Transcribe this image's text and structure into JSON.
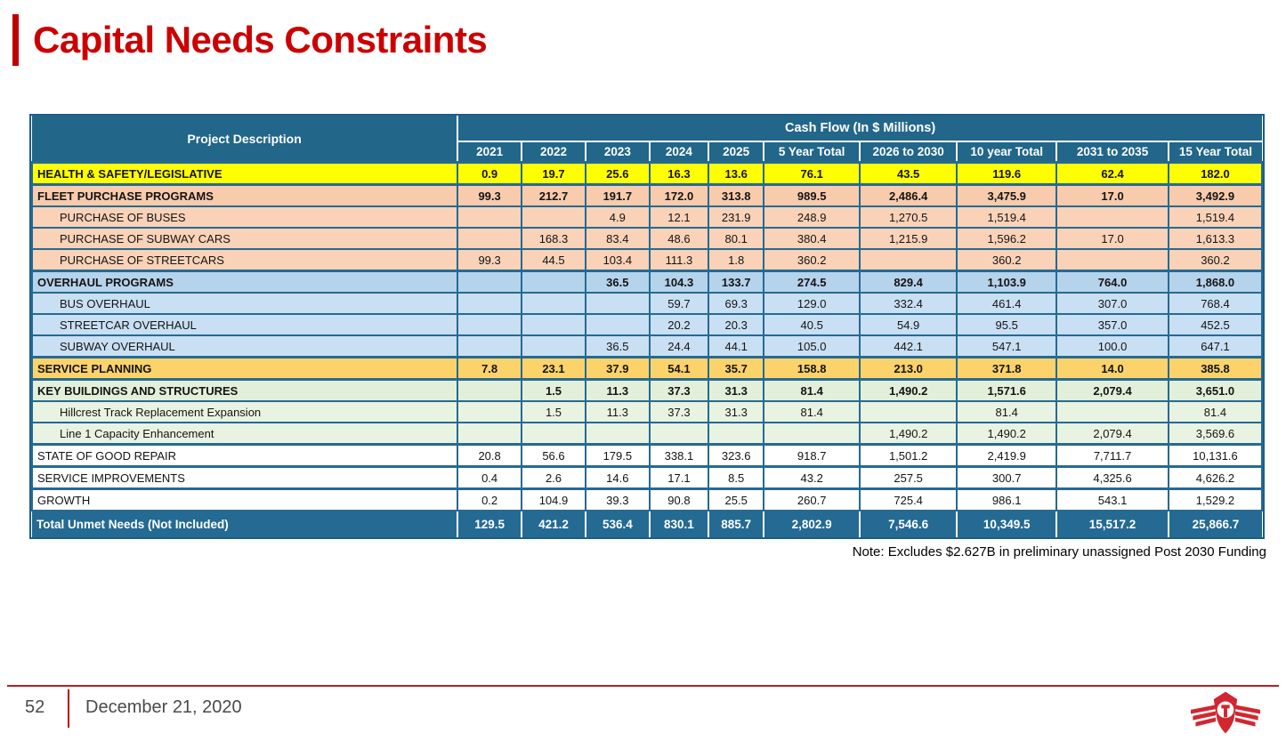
{
  "title": "Capital Needs Constraints",
  "table": {
    "header": {
      "project_col": "Project Description",
      "cash_flow_title": "Cash Flow (In $ Millions)",
      "columns": [
        "2021",
        "2022",
        "2023",
        "2024",
        "2025",
        "5 Year Total",
        "2026 to 2030",
        "10 year Total",
        "2031 to 2035",
        "15 Year Total"
      ]
    },
    "rows": [
      {
        "label": "HEALTH & SAFETY/LEGISLATIVE",
        "level": 0,
        "style": "yellow",
        "bold": true,
        "values": [
          "0.9",
          "19.7",
          "25.6",
          "16.3",
          "13.6",
          "76.1",
          "43.5",
          "119.6",
          "62.4",
          "182.0"
        ]
      },
      {
        "label": "FLEET PURCHASE PROGRAMS",
        "level": 0,
        "style": "salmon",
        "bold": true,
        "values": [
          "99.3",
          "212.7",
          "191.7",
          "172.0",
          "313.8",
          "989.5",
          "2,486.4",
          "3,475.9",
          "17.0",
          "3,492.9"
        ]
      },
      {
        "label": "PURCHASE OF BUSES",
        "level": 1,
        "style": "salmon-light",
        "bold": false,
        "values": [
          "",
          "",
          "4.9",
          "12.1",
          "231.9",
          "248.9",
          "1,270.5",
          "1,519.4",
          "",
          "1,519.4"
        ]
      },
      {
        "label": "PURCHASE OF SUBWAY CARS",
        "level": 1,
        "style": "salmon-light",
        "bold": false,
        "values": [
          "",
          "168.3",
          "83.4",
          "48.6",
          "80.1",
          "380.4",
          "1,215.9",
          "1,596.2",
          "17.0",
          "1,613.3"
        ]
      },
      {
        "label": "PURCHASE OF STREETCARS",
        "level": 1,
        "style": "salmon-light",
        "bold": false,
        "values": [
          "99.3",
          "44.5",
          "103.4",
          "111.3",
          "1.8",
          "360.2",
          "",
          "360.2",
          "",
          "360.2"
        ]
      },
      {
        "label": "OVERHAUL PROGRAMS",
        "level": 0,
        "style": "blue",
        "bold": true,
        "values": [
          "",
          "",
          "36.5",
          "104.3",
          "133.7",
          "274.5",
          "829.4",
          "1,103.9",
          "764.0",
          "1,868.0"
        ]
      },
      {
        "label": "BUS OVERHAUL",
        "level": 1,
        "style": "blue-light",
        "bold": false,
        "values": [
          "",
          "",
          "",
          "59.7",
          "69.3",
          "129.0",
          "332.4",
          "461.4",
          "307.0",
          "768.4"
        ]
      },
      {
        "label": "STREETCAR OVERHAUL",
        "level": 1,
        "style": "blue-light",
        "bold": false,
        "values": [
          "",
          "",
          "",
          "20.2",
          "20.3",
          "40.5",
          "54.9",
          "95.5",
          "357.0",
          "452.5"
        ]
      },
      {
        "label": "SUBWAY OVERHAUL",
        "level": 1,
        "style": "blue-light",
        "bold": false,
        "values": [
          "",
          "",
          "36.5",
          "24.4",
          "44.1",
          "105.0",
          "442.1",
          "547.1",
          "100.0",
          "647.1"
        ]
      },
      {
        "label": "SERVICE PLANNING",
        "level": 0,
        "style": "gold",
        "bold": true,
        "values": [
          "7.8",
          "23.1",
          "37.9",
          "54.1",
          "35.7",
          "158.8",
          "213.0",
          "371.8",
          "14.0",
          "385.8"
        ]
      },
      {
        "label": "KEY BUILDINGS AND STRUCTURES",
        "level": 0,
        "style": "green",
        "bold": true,
        "values": [
          "",
          "1.5",
          "11.3",
          "37.3",
          "31.3",
          "81.4",
          "1,490.2",
          "1,571.6",
          "2,079.4",
          "3,651.0"
        ]
      },
      {
        "label": "Hillcrest Track Replacement Expansion",
        "level": 1,
        "style": "green-light",
        "bold": false,
        "values": [
          "",
          "1.5",
          "11.3",
          "37.3",
          "31.3",
          "81.4",
          "",
          "81.4",
          "",
          "81.4"
        ]
      },
      {
        "label": "Line 1 Capacity Enhancement",
        "level": 1,
        "style": "green-light",
        "bold": false,
        "values": [
          "",
          "",
          "",
          "",
          "",
          "",
          "1,490.2",
          "1,490.2",
          "2,079.4",
          "3,569.6"
        ]
      },
      {
        "label": "STATE OF GOOD REPAIR",
        "level": 0,
        "style": "white",
        "bold": false,
        "values": [
          "20.8",
          "56.6",
          "179.5",
          "338.1",
          "323.6",
          "918.7",
          "1,501.2",
          "2,419.9",
          "7,711.7",
          "10,131.6"
        ]
      },
      {
        "label": "SERVICE IMPROVEMENTS",
        "level": 0,
        "style": "white",
        "bold": false,
        "values": [
          "0.4",
          "2.6",
          "14.6",
          "17.1",
          "8.5",
          "43.2",
          "257.5",
          "300.7",
          "4,325.6",
          "4,626.2"
        ]
      },
      {
        "label": "GROWTH",
        "level": 0,
        "style": "white",
        "bold": false,
        "values": [
          "0.2",
          "104.9",
          "39.3",
          "90.8",
          "25.5",
          "260.7",
          "725.4",
          "986.1",
          "543.1",
          "1,529.2"
        ]
      }
    ],
    "total_row": {
      "label": "Total Unmet Needs (Not Included)",
      "values": [
        "129.5",
        "421.2",
        "536.4",
        "830.1",
        "885.7",
        "2,802.9",
        "7,546.6",
        "10,349.5",
        "15,517.2",
        "25,866.7"
      ]
    }
  },
  "note": "Note: Excludes $2.627B in preliminary unassigned Post 2030 Funding",
  "footer": {
    "page_number": "52",
    "date": "December 21, 2020",
    "logo": "ttc-logo"
  },
  "colors": {
    "title_red": "#CC0000",
    "accent_red": "#C00000",
    "header_blue": "#226689",
    "total_row_blue": "#246A93",
    "border_blue": "#256A92",
    "row_yellow": "#FFFF00",
    "row_salmon": "#F8CBAD",
    "row_light_blue": "#C9DFF3",
    "row_gold": "#FCD36B",
    "row_green": "#E2EFDA",
    "logo_red": "#D22730"
  }
}
